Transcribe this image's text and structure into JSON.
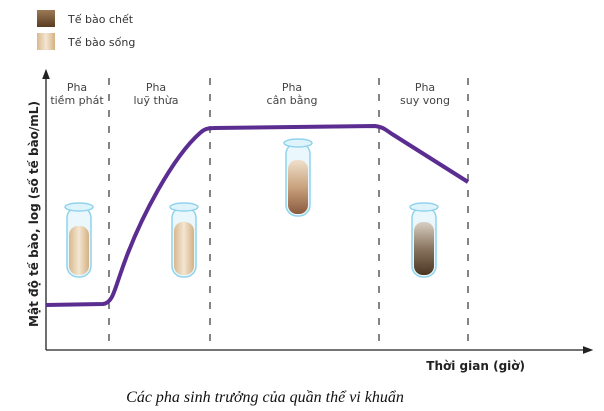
{
  "legend": [
    {
      "label": "Tế bào chết",
      "color": "#6b4a2c"
    },
    {
      "label": "Tế bào sống",
      "color": "#e3c9a2"
    }
  ],
  "y_axis_label": "Mật độ tế bào, log (số tế bào/mL)",
  "x_axis_label": "Thời gian (giờ)",
  "phases": [
    {
      "line1": "Pha",
      "line2": "tiềm phát"
    },
    {
      "line1": "Pha",
      "line2": "luỹ thừa"
    },
    {
      "line1": "Pha",
      "line2": "cân bằng"
    },
    {
      "line1": "Pha",
      "line2": "suy vong"
    }
  ],
  "curve_color": "#5b2d91",
  "caption": "Các pha sinh trưởng của quần thể vi khuẩn"
}
